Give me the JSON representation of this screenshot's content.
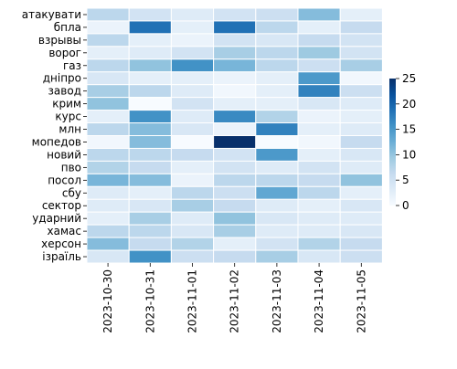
{
  "chart_data": {
    "type": "heatmap",
    "title": "",
    "xlabel": "",
    "ylabel": "",
    "x": [
      "2023-10-30",
      "2023-10-31",
      "2023-11-01",
      "2023-11-02",
      "2023-11-03",
      "2023-11-04",
      "2023-11-05"
    ],
    "y": [
      "атакувати",
      "бпла",
      "взрывы",
      "ворог",
      "газ",
      "дніпро",
      "завод",
      "крим",
      "курс",
      "млн",
      "мопедов",
      "новий",
      "пво",
      "посол",
      "сбу",
      "сектор",
      "ударний",
      "хамас",
      "херсон",
      "ізраїль"
    ],
    "values": [
      [
        9,
        6,
        4,
        6,
        7,
        14,
        3
      ],
      [
        2,
        24,
        3,
        24,
        9,
        3,
        8
      ],
      [
        9,
        3,
        2,
        6,
        5,
        8,
        6
      ],
      [
        3,
        4,
        6,
        11,
        9,
        12,
        6
      ],
      [
        9,
        13,
        20,
        15,
        9,
        7,
        11
      ],
      [
        5,
        3,
        3,
        2,
        3,
        19,
        1
      ],
      [
        11,
        9,
        4,
        1,
        3,
        22,
        7
      ],
      [
        13,
        0,
        6,
        3,
        3,
        5,
        4
      ],
      [
        3,
        20,
        4,
        21,
        10,
        2,
        3
      ],
      [
        9,
        14,
        5,
        2,
        22,
        3,
        4
      ],
      [
        1,
        14,
        0,
        32,
        0,
        1,
        8
      ],
      [
        9,
        9,
        8,
        6,
        19,
        3,
        5
      ],
      [
        10,
        8,
        3,
        6,
        4,
        6,
        4
      ],
      [
        15,
        14,
        2,
        9,
        9,
        8,
        13
      ],
      [
        4,
        3,
        9,
        7,
        17,
        9,
        3
      ],
      [
        4,
        5,
        11,
        8,
        4,
        3,
        5
      ],
      [
        3,
        11,
        4,
        13,
        5,
        4,
        4
      ],
      [
        9,
        9,
        5,
        11,
        4,
        4,
        5
      ],
      [
        14,
        8,
        10,
        3,
        6,
        10,
        8
      ],
      [
        5,
        20,
        7,
        8,
        11,
        5,
        7
      ]
    ],
    "colorbar": {
      "min": 0,
      "max": 25,
      "ticks": [
        "0",
        "5",
        "10",
        "15",
        "20",
        "25"
      ]
    },
    "colormap": [
      "#f7fbff",
      "#deebf7",
      "#c6dbef",
      "#9ecae1",
      "#6baed6",
      "#4292c6",
      "#2171b5",
      "#08519c",
      "#08306b"
    ],
    "grid": true,
    "legend": "right"
  }
}
